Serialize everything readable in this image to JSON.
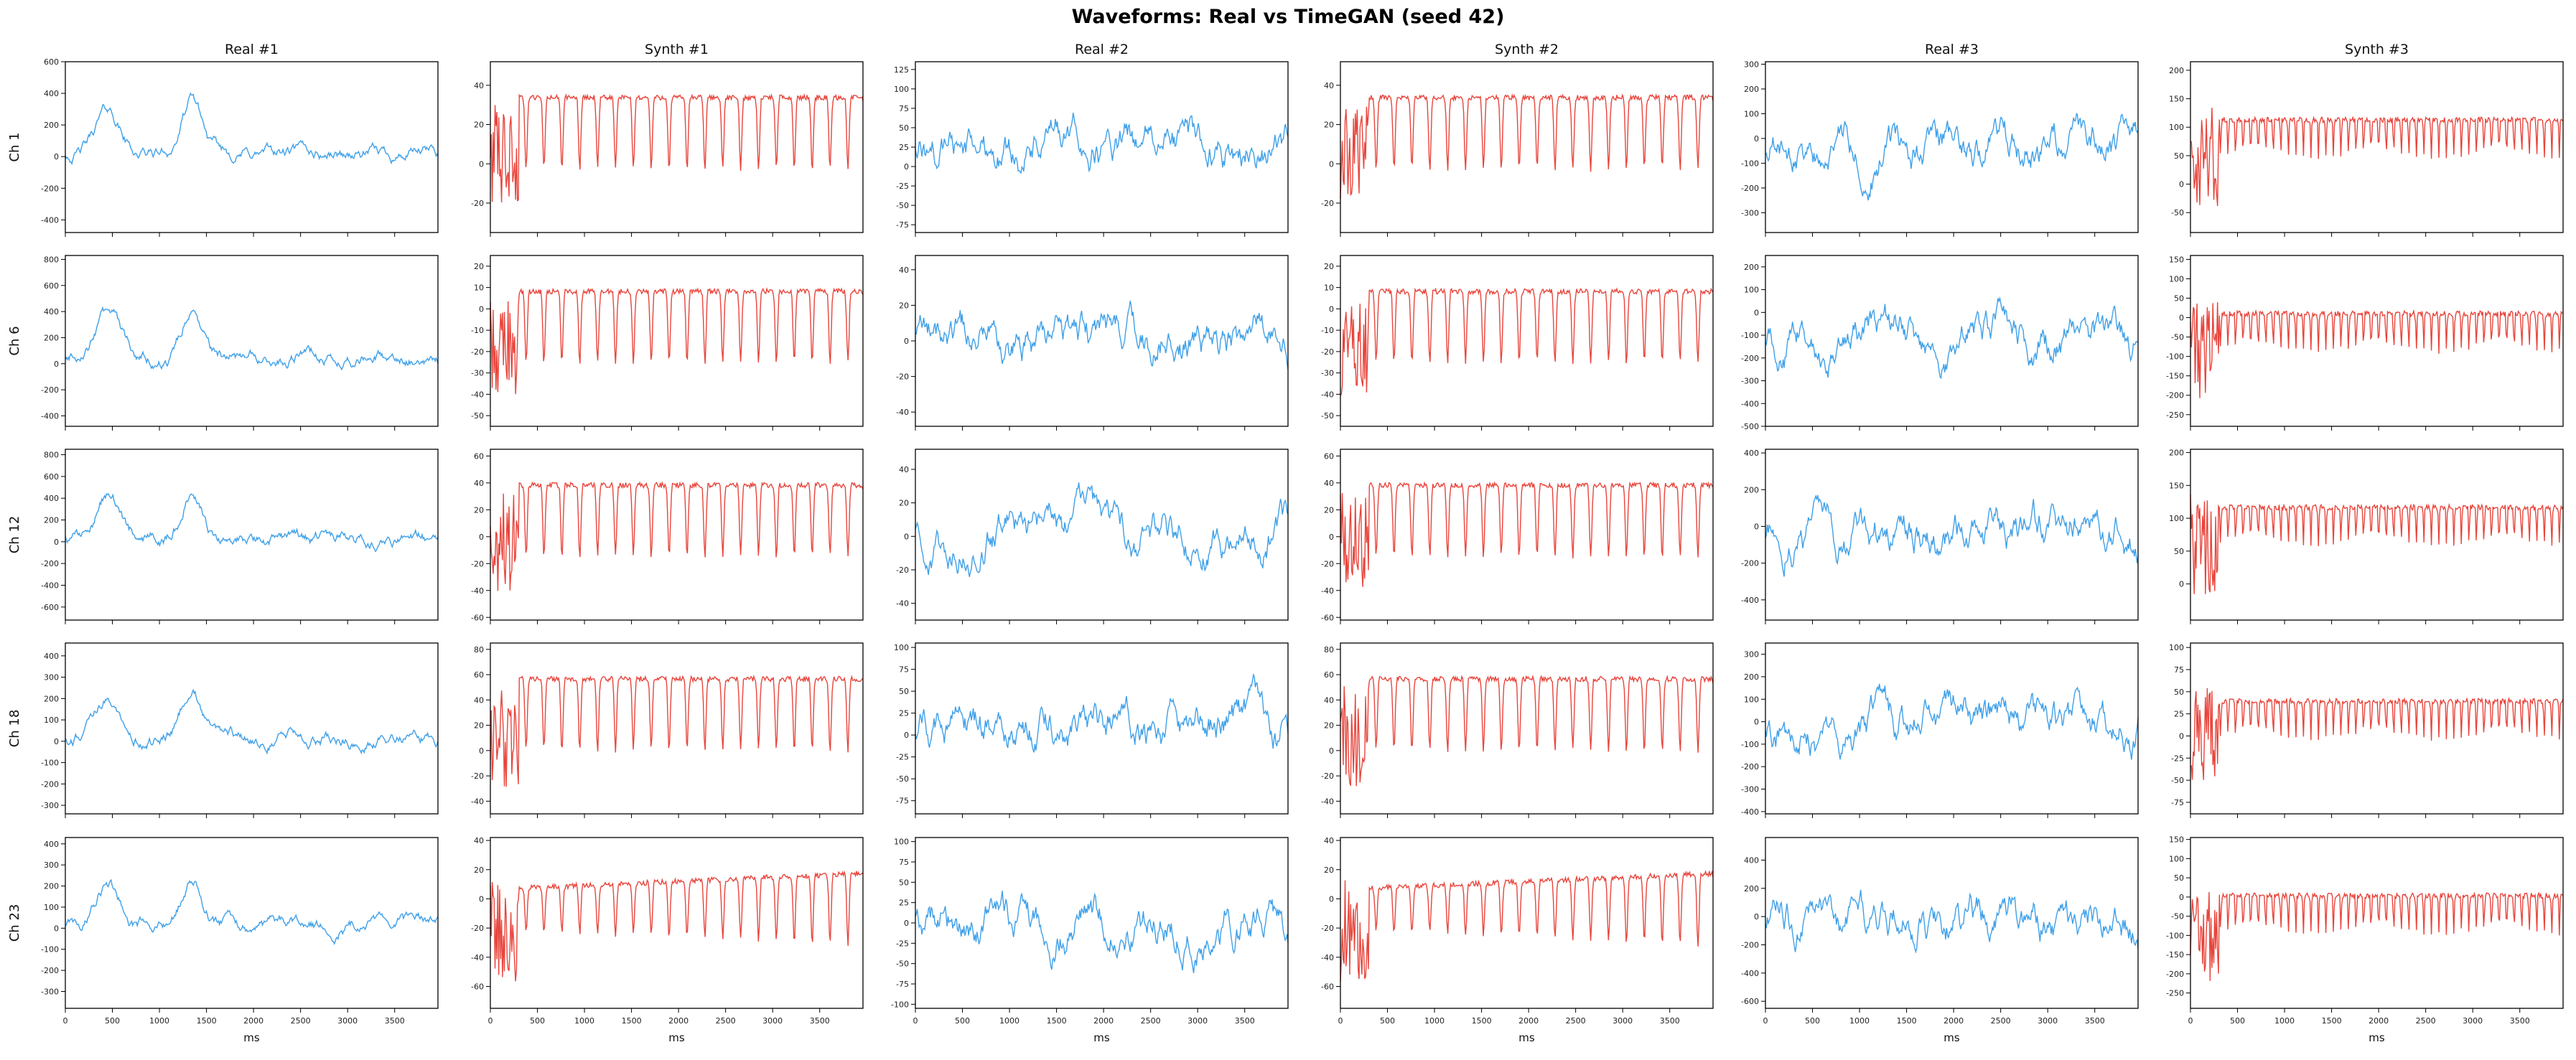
{
  "figure": {
    "title": "Waveforms: Real vs TimeGAN (seed 42)",
    "colors": {
      "real": "#3fa0e8",
      "synth": "#e8453c",
      "frame": "#000000",
      "text": "#222222"
    }
  },
  "chart_data": {
    "type": "line",
    "title": "Waveforms: Real vs TimeGAN (seed 42)",
    "layout": "grid 5 rows x 6 columns, shared x axis per column",
    "columns": [
      {
        "title": "Real #1",
        "kind": "real",
        "sample": 1
      },
      {
        "title": "Synth #1",
        "kind": "synth",
        "sample": 1
      },
      {
        "title": "Real #2",
        "kind": "real",
        "sample": 2
      },
      {
        "title": "Synth #2",
        "kind": "synth",
        "sample": 2
      },
      {
        "title": "Real #3",
        "kind": "real",
        "sample": 3
      },
      {
        "title": "Synth #3",
        "kind": "synth",
        "sample": 3
      }
    ],
    "rows": [
      {
        "label": "Ch 1",
        "yticks": [
          [
            -400,
            -200,
            0,
            200,
            400,
            600
          ],
          [
            -20,
            0,
            20,
            40
          ],
          [
            -75,
            -50,
            -25,
            0,
            25,
            50,
            75,
            100,
            125
          ],
          [
            -20,
            0,
            20,
            40
          ],
          [
            -300,
            -200,
            -100,
            0,
            100,
            200,
            300
          ],
          [
            -50,
            0,
            50,
            100,
            150,
            200
          ]
        ],
        "ylim": [
          [
            -480,
            600
          ],
          [
            -35,
            52
          ],
          [
            -85,
            135
          ],
          [
            -35,
            52
          ],
          [
            -380,
            310
          ],
          [
            -85,
            215
          ]
        ]
      },
      {
        "label": "Ch 6",
        "yticks": [
          [
            -400,
            -200,
            0,
            200,
            400,
            600,
            800
          ],
          [
            -50,
            -40,
            -30,
            -20,
            -10,
            0,
            10,
            20
          ],
          [
            -40,
            -20,
            0,
            20,
            40
          ],
          [
            -50,
            -40,
            -30,
            -20,
            -10,
            0,
            10,
            20
          ],
          [
            -500,
            -400,
            -300,
            -200,
            -100,
            0,
            100,
            200
          ],
          [
            -250,
            -200,
            -150,
            -100,
            -50,
            0,
            50,
            100,
            150
          ]
        ],
        "ylim": [
          [
            -480,
            830
          ],
          [
            -55,
            25
          ],
          [
            -48,
            48
          ],
          [
            -55,
            25
          ],
          [
            -500,
            250
          ],
          [
            -280,
            160
          ]
        ]
      },
      {
        "label": "Ch 12",
        "yticks": [
          [
            -600,
            -400,
            -200,
            0,
            200,
            400,
            600,
            800
          ],
          [
            -60,
            -40,
            -20,
            0,
            20,
            40,
            60
          ],
          [
            -40,
            -20,
            0,
            20,
            40
          ],
          [
            -60,
            -40,
            -20,
            0,
            20,
            40,
            60
          ],
          [
            -400,
            -200,
            0,
            200,
            400
          ],
          [
            0,
            50,
            100,
            150,
            200
          ]
        ],
        "ylim": [
          [
            -720,
            850
          ],
          [
            -62,
            65
          ],
          [
            -50,
            52
          ],
          [
            -62,
            65
          ],
          [
            -510,
            420
          ],
          [
            -55,
            205
          ]
        ]
      },
      {
        "label": "Ch 18",
        "yticks": [
          [
            -300,
            -200,
            -100,
            0,
            100,
            200,
            300,
            400
          ],
          [
            -40,
            -20,
            0,
            20,
            40,
            60,
            80
          ],
          [
            -75,
            -50,
            -25,
            0,
            25,
            50,
            75,
            100
          ],
          [
            -40,
            -20,
            0,
            20,
            40,
            60,
            80
          ],
          [
            -400,
            -300,
            -200,
            -100,
            0,
            100,
            200,
            300
          ],
          [
            -75,
            -50,
            -25,
            0,
            25,
            50,
            75,
            100
          ]
        ],
        "ylim": [
          [
            -340,
            460
          ],
          [
            -50,
            85
          ],
          [
            -90,
            105
          ],
          [
            -50,
            85
          ],
          [
            -410,
            350
          ],
          [
            -88,
            105
          ]
        ]
      },
      {
        "label": "Ch 23",
        "yticks": [
          [
            -300,
            -200,
            -100,
            0,
            100,
            200,
            300,
            400
          ],
          [
            -60,
            -40,
            -20,
            0,
            20,
            40
          ],
          [
            -100,
            -75,
            -50,
            -25,
            0,
            25,
            50,
            75,
            100
          ],
          [
            -60,
            -40,
            -20,
            0,
            20,
            40
          ],
          [
            -600,
            -400,
            -200,
            0,
            200,
            400
          ],
          [
            -250,
            -200,
            -150,
            -100,
            -50,
            0,
            50,
            100,
            150
          ]
        ],
        "ylim": [
          [
            -380,
            430
          ],
          [
            -75,
            42
          ],
          [
            -105,
            105
          ],
          [
            -75,
            42
          ],
          [
            -650,
            560
          ],
          [
            -290,
            155
          ]
        ]
      }
    ],
    "x": {
      "label": "ms",
      "lim": [
        0,
        3960
      ],
      "ticks": [
        0,
        500,
        1000,
        1500,
        2000,
        2500,
        3000,
        3500
      ]
    },
    "series_colors": {
      "real": "#3fa0e8",
      "synth": "#e8453c"
    },
    "note_on_traces": "dense waveform traces; shapes approximated procedurally per panel"
  }
}
